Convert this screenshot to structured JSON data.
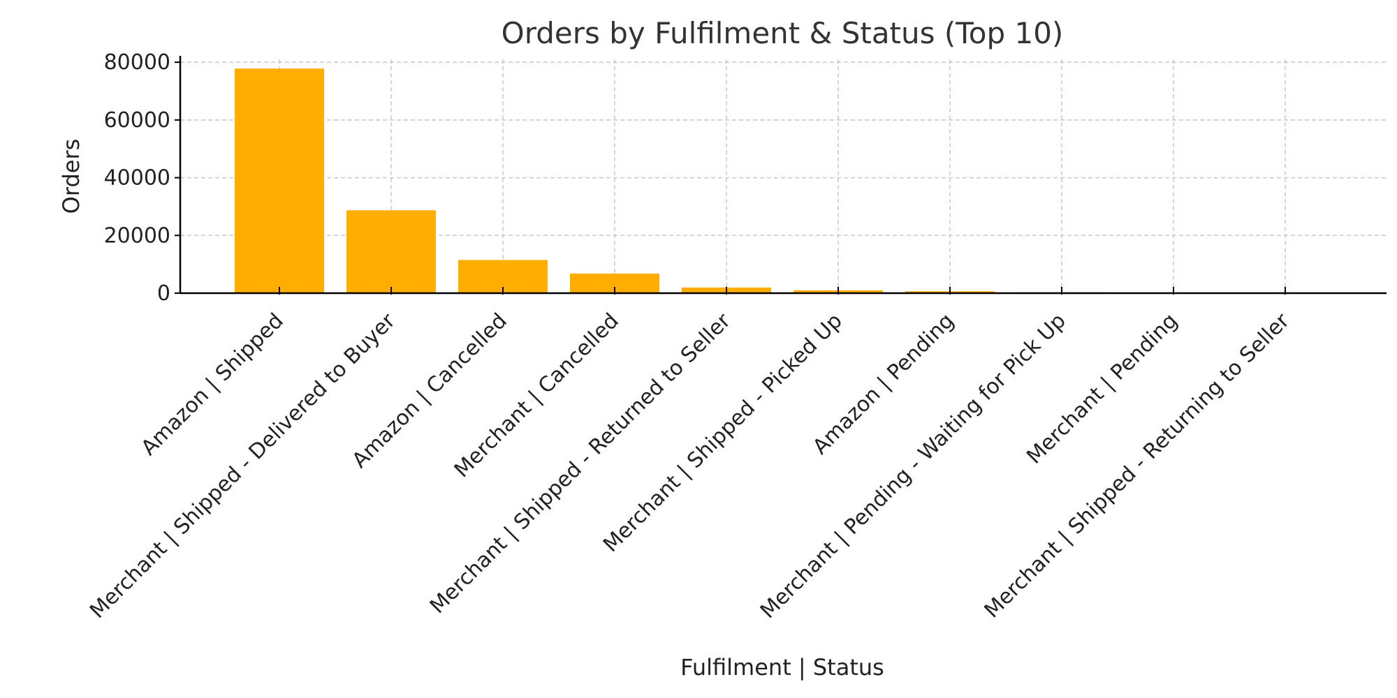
{
  "chart_data": {
    "type": "bar",
    "title": "Orders by Fulfilment & Status (Top 10)",
    "xlabel": "Fulfilment | Status",
    "ylabel": "Orders",
    "categories": [
      "Amazon | Shipped",
      "Merchant | Shipped - Delivered to Buyer",
      "Amazon | Cancelled",
      "Merchant | Cancelled",
      "Merchant | Shipped - Returned to Seller",
      "Merchant | Shipped - Picked Up",
      "Amazon | Pending",
      "Merchant | Pending - Waiting for Pick Up",
      "Merchant | Pending",
      "Merchant | Shipped - Returning to Seller"
    ],
    "values": [
      77800,
      28700,
      11500,
      6800,
      1950,
      970,
      650,
      280,
      160,
      130
    ],
    "ylim": [
      0,
      81000
    ],
    "yticks": [
      0,
      20000,
      40000,
      60000,
      80000
    ],
    "bar_color": "#FFAE00",
    "grid": true,
    "grid_color": "#c8c8c8"
  }
}
